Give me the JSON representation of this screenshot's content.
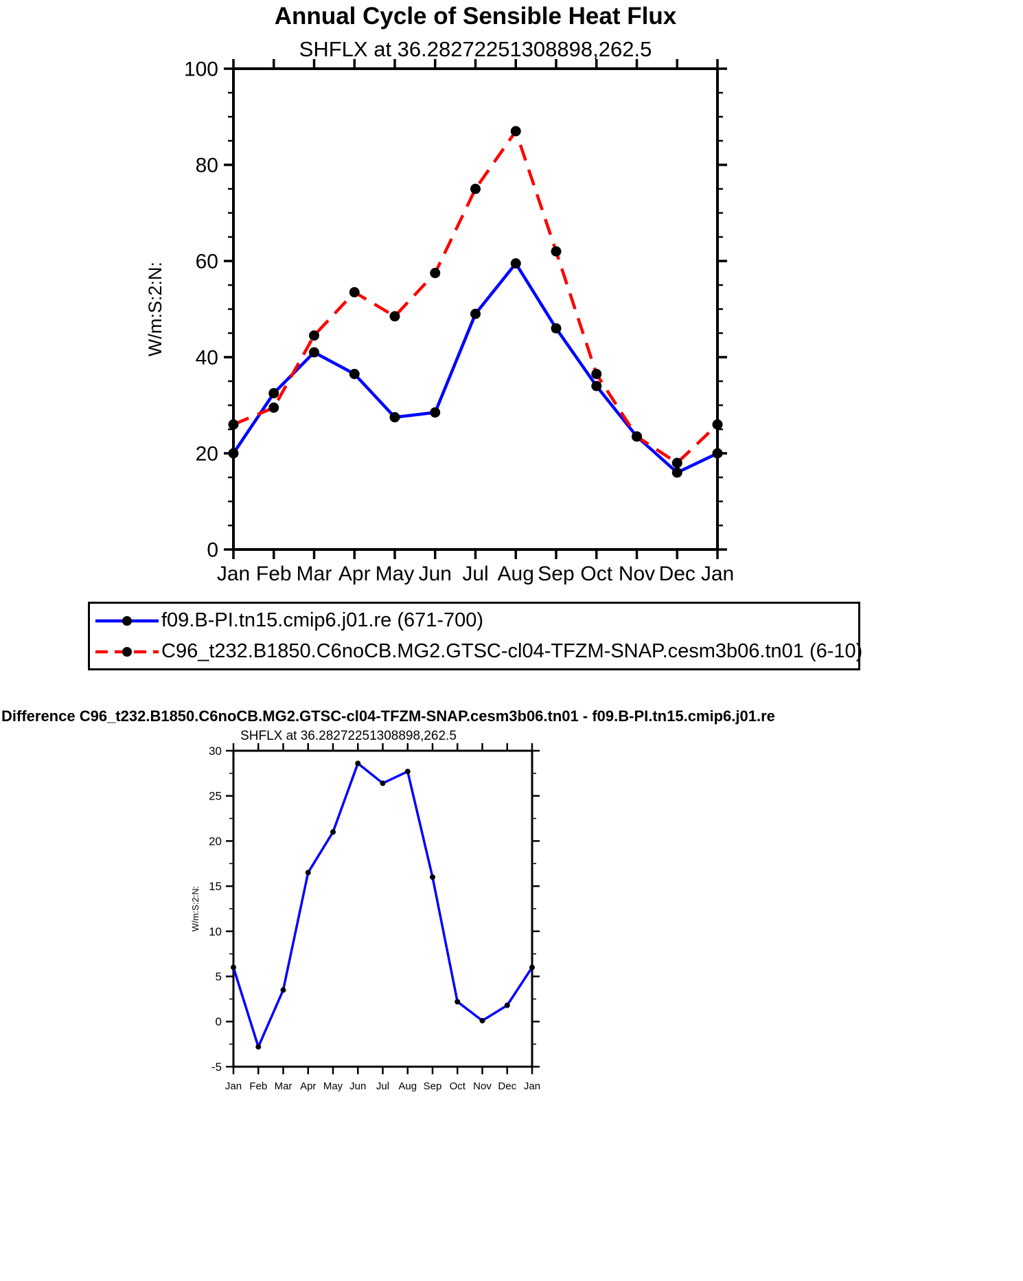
{
  "page": {
    "background": "#ffffff",
    "text_color": "#000000",
    "line_blue": "#0000ff",
    "line_red": "#ff0000",
    "marker_black": "#000000"
  },
  "chart_data": [
    {
      "type": "line",
      "title": "Annual Cycle of Sensible Heat Flux",
      "subtitle": "SHFLX at 36.28272251308898,262.5",
      "ylabel": "W/m:S:2:N:",
      "xlabel": "",
      "categories": [
        "Jan",
        "Feb",
        "Mar",
        "Apr",
        "May",
        "Jun",
        "Jul",
        "Aug",
        "Sep",
        "Oct",
        "Nov",
        "Dec",
        "Jan"
      ],
      "ylim": [
        0,
        100
      ],
      "yticks": [
        0,
        20,
        40,
        60,
        80,
        100
      ],
      "grid": false,
      "legend_position": "below",
      "marker_color": "#000000",
      "series": [
        {
          "name": "f09.B-PI.tn15.cmip6.j01.re (671-700)",
          "color": "#0000ff",
          "line_style": "solid",
          "values": [
            20,
            32.5,
            41,
            36.5,
            27.5,
            28.5,
            49,
            59.5,
            46,
            34,
            23.5,
            16,
            20
          ]
        },
        {
          "name": "C96_t232.B1850.C6noCB.MG2.GTSC-cl04-TFZM-SNAP.cesm3b06.tn01 (6-10)",
          "color": "#ff0000",
          "line_style": "dashed",
          "values": [
            26,
            29.5,
            44.5,
            53.5,
            48.5,
            57.5,
            75,
            87,
            62,
            36.5,
            23.5,
            18,
            26
          ]
        }
      ]
    },
    {
      "type": "line",
      "title": "Difference C96_t232.B1850.C6noCB.MG2.GTSC-cl04-TFZM-SNAP.cesm3b06.tn01 - f09.B-PI.tn15.cmip6.j01.re",
      "subtitle": "SHFLX at 36.28272251308898,262.5",
      "ylabel": "W/m:S:2:N:",
      "xlabel": "",
      "categories": [
        "Jan",
        "Feb",
        "Mar",
        "Apr",
        "May",
        "Jun",
        "Jul",
        "Aug",
        "Sep",
        "Oct",
        "Nov",
        "Dec",
        "Jan"
      ],
      "ylim": [
        -5,
        30
      ],
      "yticks": [
        -5,
        0,
        5,
        10,
        15,
        20,
        25,
        30
      ],
      "grid": false,
      "legend_position": "none",
      "marker_color": "#000000",
      "series": [
        {
          "name": "difference",
          "color": "#0000ff",
          "line_style": "solid",
          "values": [
            6,
            -2.8,
            3.5,
            16.5,
            21,
            28.6,
            26.4,
            27.7,
            16,
            2.2,
            0.1,
            1.8,
            6
          ]
        }
      ]
    }
  ]
}
